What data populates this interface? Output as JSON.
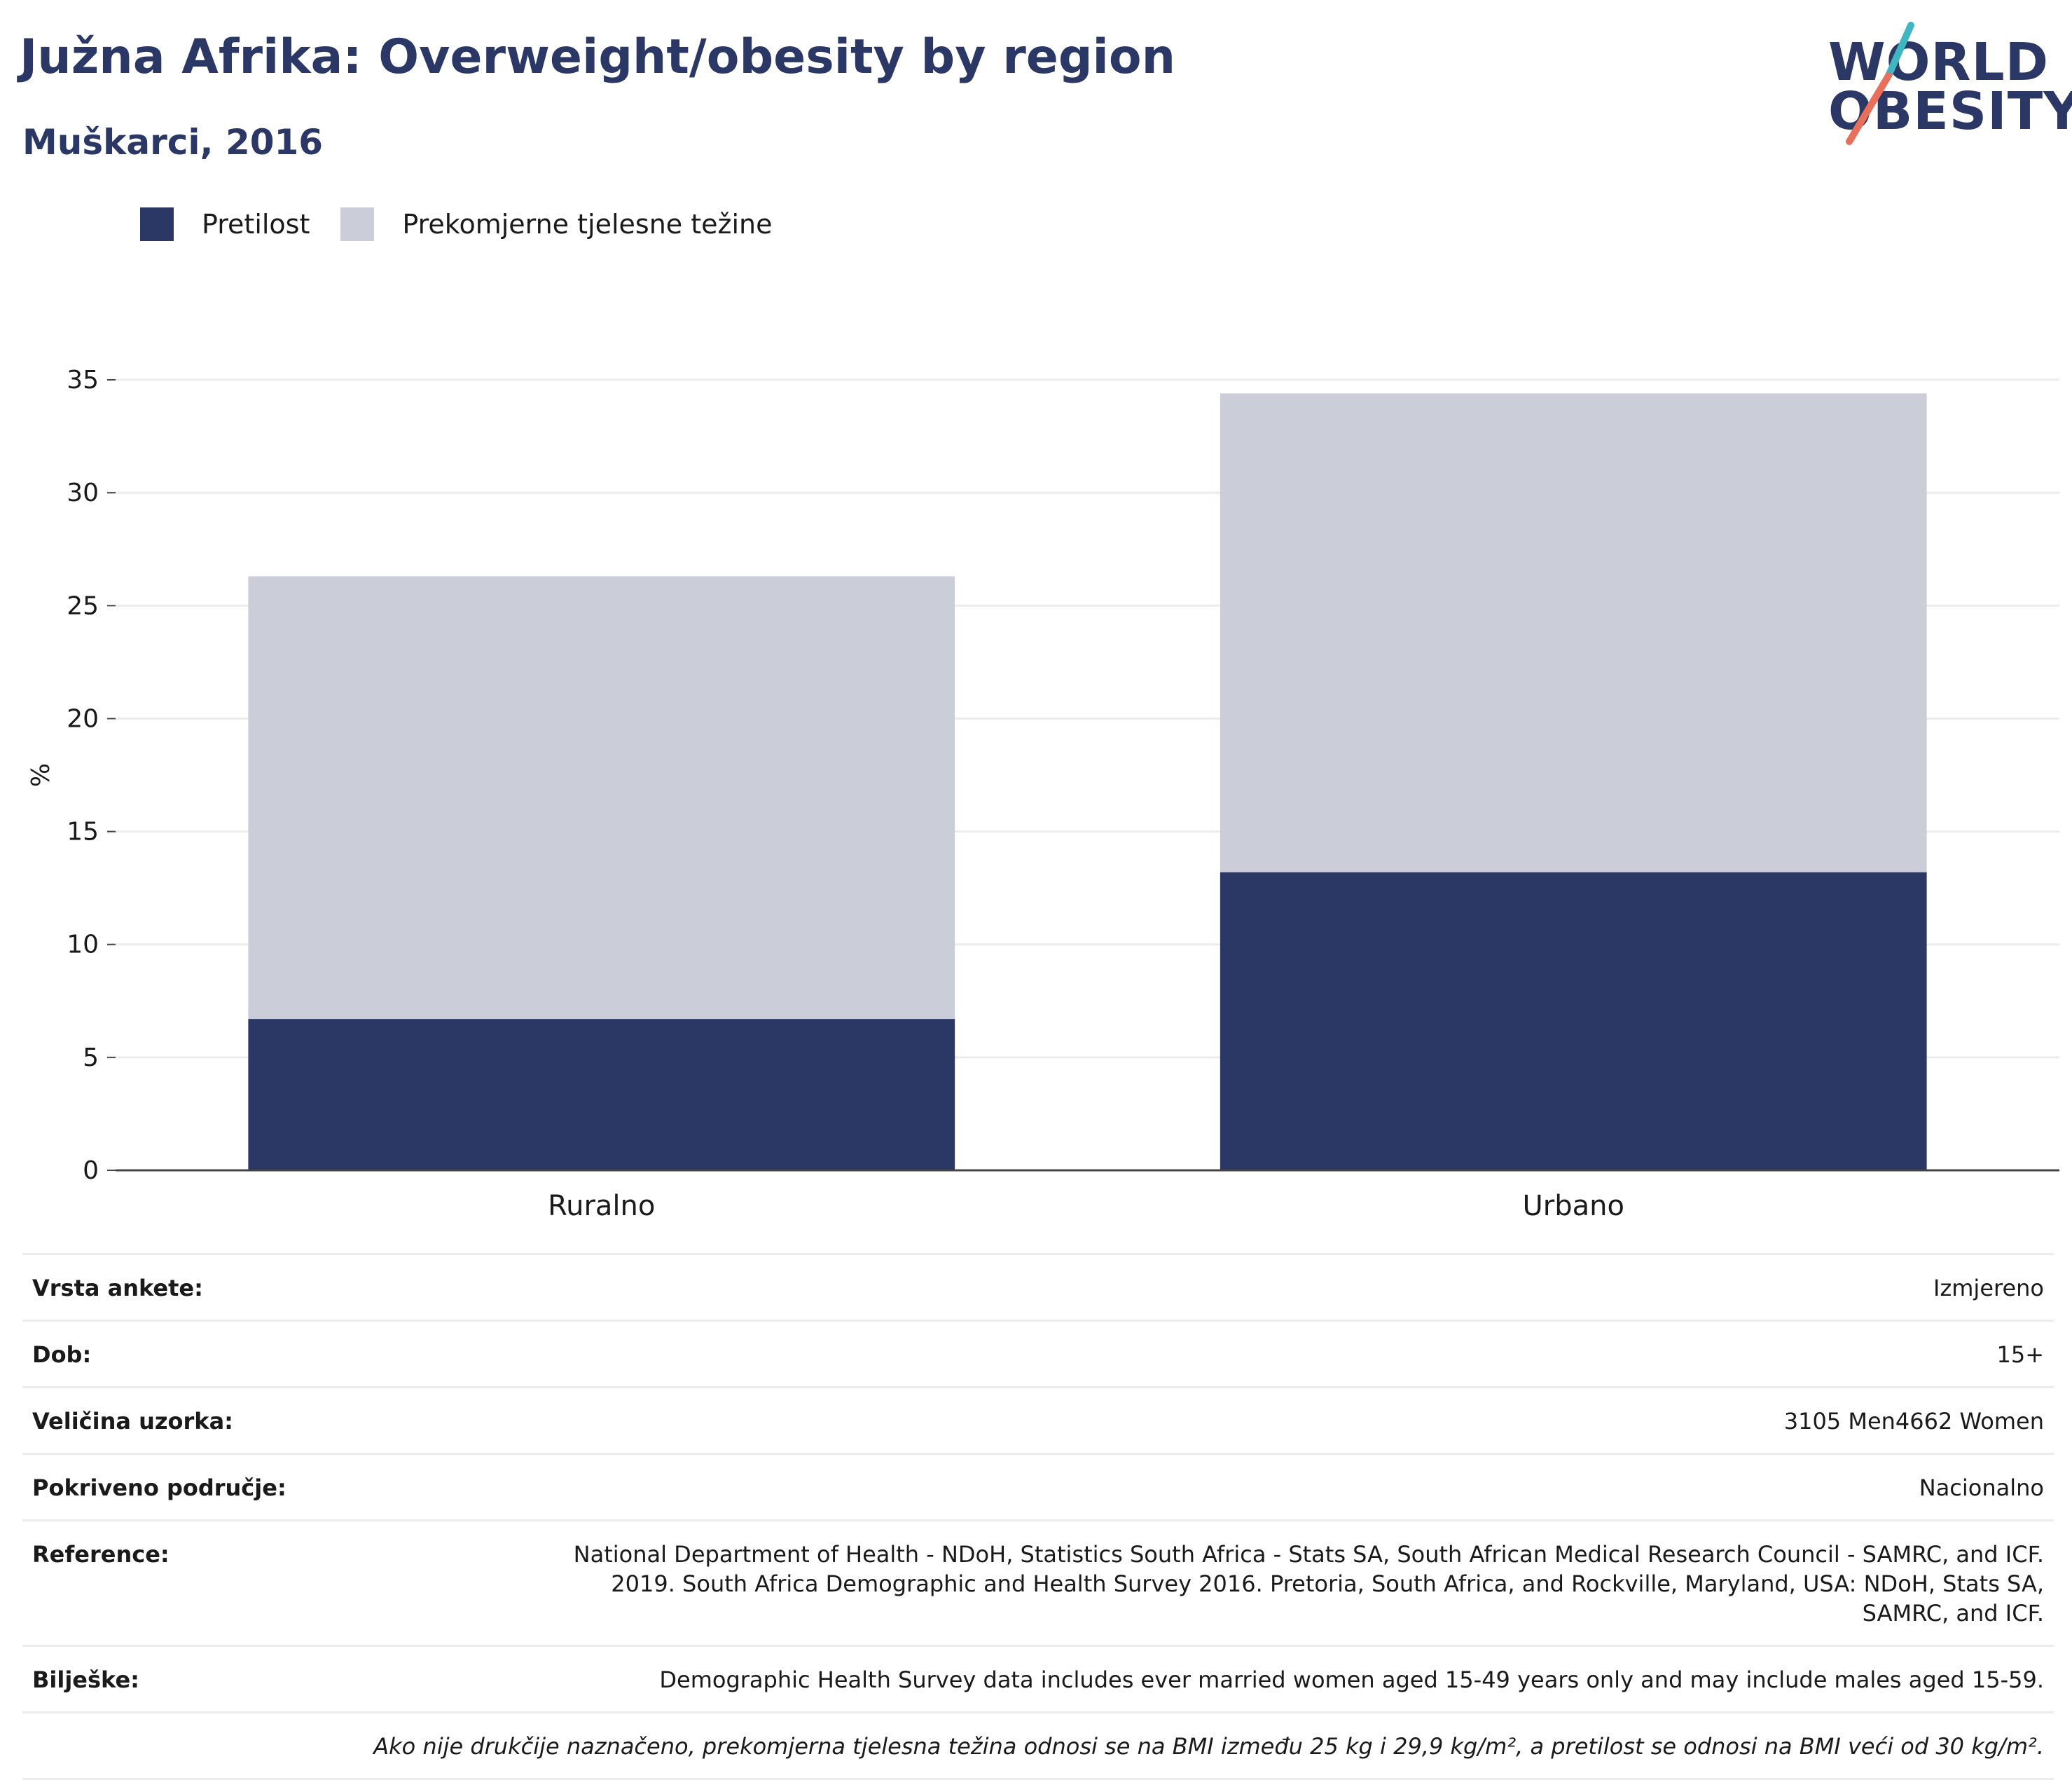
{
  "header": {
    "title": "Južna Afrika: Overweight/obesity by region",
    "subtitle": "Muškarci, 2016"
  },
  "logo": {
    "line1": "WORLD",
    "line2": "OBESITY",
    "slash_colors": [
      "#3fb6c1",
      "#e8705a"
    ]
  },
  "colors": {
    "navy": "#2b3764",
    "light": "#cbcdd8",
    "text_title": "#2b3764"
  },
  "legend": [
    {
      "label": "Pretilost",
      "color": "#2b3764"
    },
    {
      "label": "Prekomjerne tjelesne težine",
      "color": "#cbcdd8"
    }
  ],
  "chart_data": {
    "type": "bar",
    "stacked": true,
    "categories": [
      "Ruralno",
      "Urbano"
    ],
    "series": [
      {
        "name": "Pretilost",
        "color": "#2b3764",
        "values": [
          6.7,
          13.2
        ]
      },
      {
        "name": "Prekomjerne tjelesne težine",
        "color": "#cbcdd8",
        "values": [
          19.6,
          21.2
        ]
      }
    ],
    "ylabel": "%",
    "xlabel": "",
    "ylim": [
      0,
      35
    ],
    "yticks": [
      0,
      5,
      10,
      15,
      20,
      25,
      30,
      35
    ],
    "grid": true,
    "legend_position": "top-left"
  },
  "info": {
    "rows": [
      {
        "label": "Vrsta ankete:",
        "value": "Izmjereno"
      },
      {
        "label": "Dob:",
        "value": "15+"
      },
      {
        "label": "Veličina uzorka:",
        "value": "3105 Men4662 Women"
      },
      {
        "label": "Pokriveno područje:",
        "value": "Nacionalno"
      },
      {
        "label": "Reference:",
        "value": "National Department of Health - NDoH, Statistics South Africa - Stats SA, South African Medical Research Council - SAMRC, and ICF. 2019. South Africa Demographic and Health Survey 2016. Pretoria, South Africa, and Rockville, Maryland, USA: NDoH, Stats SA, SAMRC, and ICF."
      },
      {
        "label": "Bilješke:",
        "value": "Demographic Health Survey data includes ever married women aged 15-49 years only and may include males aged 15-59."
      }
    ],
    "footnote": "Ako nije drukčije naznačeno, prekomjerna tjelesna težina odnosi se na BMI između 25 kg i 29,9 kg/m², a pretilost se odnosi na BMI veći od 30 kg/m²."
  }
}
